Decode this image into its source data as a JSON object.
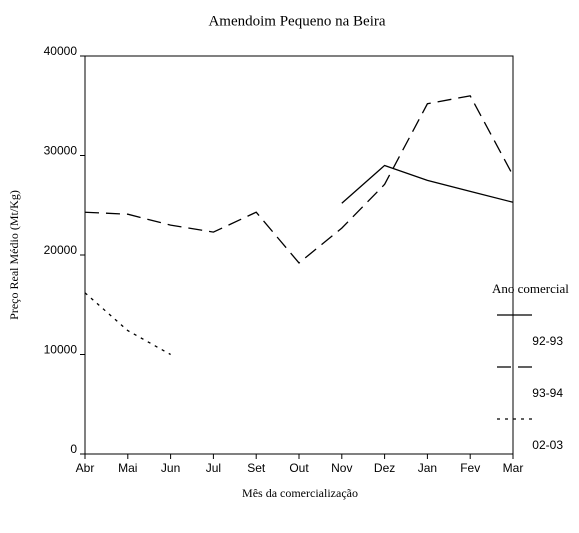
{
  "chart_data": {
    "type": "line",
    "title": "Amendoim Pequeno na Beira",
    "x_label": "Mês da comercialização",
    "y_label": "Preço Real Médio (Mt/Kg)",
    "categories": [
      "Abr",
      "Mai",
      "Jun",
      "Jul",
      "Set",
      "Out",
      "Nov",
      "Dez",
      "Jan",
      "Fev",
      "Mar"
    ],
    "series": [
      {
        "name": "92-93",
        "color": "#000000",
        "dash": "solid",
        "values": [
          null,
          null,
          null,
          null,
          null,
          null,
          25200,
          29000,
          27500,
          26400,
          25300
        ]
      },
      {
        "name": "93-94",
        "color": "#000000",
        "dash": "dashed",
        "values": [
          24300,
          24100,
          23000,
          22300,
          24300,
          19200,
          22700,
          27100,
          35200,
          36000,
          28000
        ]
      },
      {
        "name": "02-03",
        "color": "#000000",
        "dash": "dotted",
        "values": [
          16200,
          12400,
          10000,
          null,
          null,
          null,
          null,
          null,
          null,
          null,
          null
        ]
      }
    ],
    "ylim": [
      0,
      40000
    ],
    "yticks": [
      0,
      10000,
      20000,
      30000,
      40000
    ],
    "grid": false,
    "legend_title": "Ano comercial",
    "legend": "right"
  }
}
